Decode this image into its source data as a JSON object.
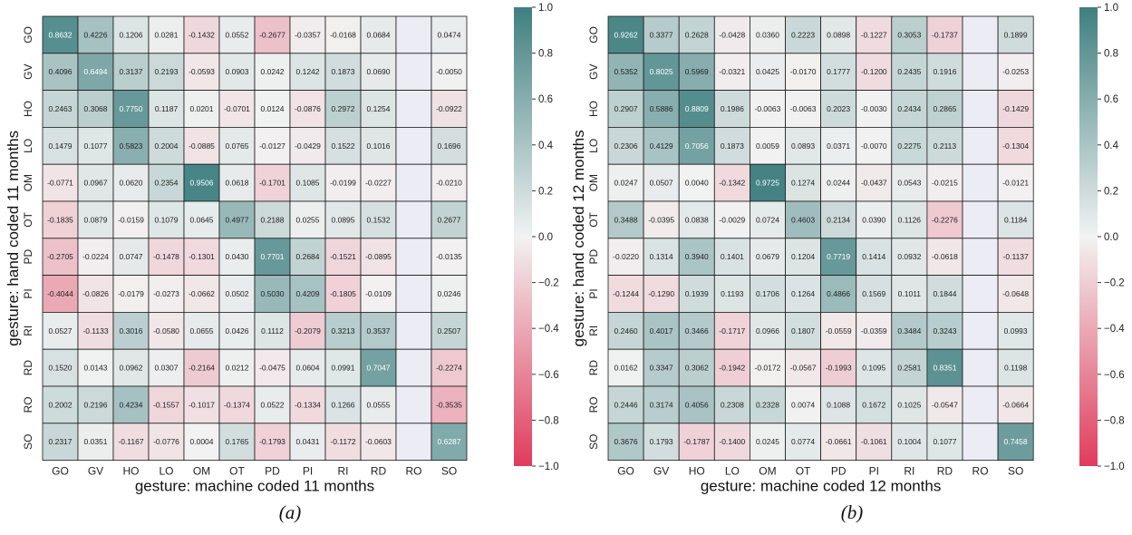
{
  "chart_data": [
    {
      "type": "heatmap",
      "xlabel": "gesture: machine coded 11 months",
      "ylabel": "gesture: hand coded 11 months",
      "caption": "(a)",
      "x_categories": [
        "GO",
        "GV",
        "HO",
        "LO",
        "OM",
        "OT",
        "PD",
        "PI",
        "RI",
        "RD",
        "RO",
        "SO"
      ],
      "y_categories": [
        "GO",
        "GV",
        "HO",
        "LO",
        "OM",
        "OT",
        "PD",
        "PI",
        "RI",
        "RD",
        "RO",
        "SO"
      ],
      "values": [
        [
          0.8632,
          0.4226,
          0.1206,
          0.0281,
          -0.1432,
          0.0552,
          -0.2677,
          -0.0357,
          -0.0168,
          0.0684,
          null,
          0.0474
        ],
        [
          0.4096,
          0.6494,
          0.3137,
          0.2193,
          -0.0593,
          0.0903,
          0.0242,
          0.1242,
          0.1873,
          0.069,
          null,
          -0.005
        ],
        [
          0.2463,
          0.3068,
          0.775,
          0.1187,
          0.0201,
          -0.0701,
          0.0124,
          -0.0876,
          0.2972,
          0.1254,
          null,
          -0.0922
        ],
        [
          0.1479,
          0.1077,
          0.5823,
          0.2004,
          -0.0885,
          0.0765,
          -0.0127,
          -0.0429,
          0.1522,
          0.1016,
          null,
          0.1696
        ],
        [
          -0.0771,
          0.0967,
          0.062,
          0.2354,
          0.9506,
          0.0618,
          -0.1701,
          0.1085,
          -0.0199,
          -0.0227,
          null,
          -0.021
        ],
        [
          -0.1835,
          0.0879,
          -0.0159,
          0.1079,
          0.0645,
          0.4977,
          0.2188,
          0.0255,
          0.0895,
          0.1532,
          null,
          0.2677
        ],
        [
          -0.2705,
          -0.0224,
          0.0747,
          -0.1478,
          -0.1301,
          0.043,
          0.7701,
          0.2684,
          -0.1521,
          -0.0895,
          null,
          -0.0135
        ],
        [
          -0.4044,
          -0.0826,
          -0.0179,
          -0.0273,
          -0.0662,
          0.0502,
          0.503,
          0.4209,
          -0.1805,
          -0.0109,
          null,
          0.0246
        ],
        [
          0.0527,
          -0.1133,
          0.3016,
          -0.058,
          0.0655,
          0.0426,
          0.1112,
          -0.2079,
          0.3213,
          0.3537,
          null,
          0.2507
        ],
        [
          0.152,
          0.0143,
          0.0962,
          0.0307,
          -0.2164,
          0.0212,
          -0.0475,
          0.0604,
          0.0991,
          0.7047,
          null,
          -0.2274
        ],
        [
          0.2002,
          0.2196,
          0.4234,
          -0.1557,
          -0.1017,
          -0.1374,
          0.0522,
          -0.1334,
          0.1266,
          0.0555,
          null,
          -0.3535
        ],
        [
          0.2317,
          0.0351,
          -0.1167,
          -0.0776,
          0.0004,
          0.1765,
          -0.1793,
          0.0431,
          -0.1172,
          -0.0603,
          null,
          0.6287
        ]
      ],
      "colorbar": {
        "range": [
          -1.0,
          1.0
        ],
        "ticks": [
          "1.0",
          "0.8",
          "0.6",
          "0.4",
          "0.2",
          "0.0",
          "−0.2",
          "−0.4",
          "−0.6",
          "−0.8",
          "−1.0"
        ],
        "tick_values": [
          1.0,
          0.8,
          0.6,
          0.4,
          0.2,
          0.0,
          -0.2,
          -0.4,
          -0.6,
          -0.8,
          -1.0
        ]
      },
      "missing_color": "#ececf5"
    },
    {
      "type": "heatmap",
      "xlabel": "gesture: machine coded 12 months",
      "ylabel": "gesture: hand coded 12 months",
      "caption": "(b)",
      "x_categories": [
        "GO",
        "GV",
        "HO",
        "LO",
        "OM",
        "OT",
        "PD",
        "PI",
        "RI",
        "RD",
        "RO",
        "SO"
      ],
      "y_categories": [
        "GO",
        "GV",
        "HO",
        "LO",
        "OM",
        "OT",
        "PD",
        "PI",
        "RI",
        "RD",
        "RO",
        "SO"
      ],
      "values": [
        [
          0.9262,
          0.3377,
          0.2628,
          -0.0428,
          0.036,
          0.2223,
          0.0898,
          -0.1227,
          0.3053,
          -0.1737,
          null,
          0.1899
        ],
        [
          0.5352,
          0.8025,
          0.5969,
          -0.0321,
          0.0425,
          -0.017,
          0.1777,
          -0.12,
          0.2435,
          0.1916,
          null,
          -0.0253
        ],
        [
          0.2907,
          0.5886,
          0.8809,
          0.1986,
          -0.0063,
          -0.0063,
          0.2023,
          -0.003,
          0.2434,
          0.2865,
          null,
          -0.1429
        ],
        [
          0.2306,
          0.4129,
          0.7056,
          0.1873,
          0.0059,
          0.0893,
          0.0371,
          -0.007,
          0.2275,
          0.2113,
          null,
          -0.1304
        ],
        [
          0.0247,
          0.0507,
          0.004,
          -0.1342,
          0.9725,
          0.1274,
          0.0244,
          -0.0437,
          0.0543,
          -0.0215,
          null,
          -0.0121
        ],
        [
          0.3488,
          -0.0395,
          0.0838,
          -0.0029,
          0.0724,
          0.4603,
          0.2134,
          0.039,
          0.1126,
          -0.2276,
          null,
          0.1184
        ],
        [
          -0.022,
          0.1314,
          0.394,
          0.1401,
          0.0679,
          0.1204,
          0.7719,
          0.1414,
          0.0932,
          -0.0618,
          null,
          -0.1137
        ],
        [
          -0.1244,
          -0.129,
          0.1939,
          0.1193,
          0.1706,
          0.1264,
          0.4866,
          0.1569,
          0.1011,
          0.1844,
          null,
          -0.0648
        ],
        [
          0.246,
          0.4017,
          0.3466,
          -0.1717,
          0.0966,
          0.1807,
          -0.0559,
          -0.0359,
          0.3484,
          0.3243,
          null,
          0.0993
        ],
        [
          0.0162,
          0.3347,
          0.3062,
          -0.1942,
          -0.0172,
          -0.0567,
          -0.1993,
          0.1095,
          0.2581,
          0.8351,
          null,
          0.1198
        ],
        [
          0.2446,
          0.3174,
          0.4056,
          0.2308,
          0.2328,
          0.0074,
          0.1088,
          0.1672,
          0.1025,
          -0.0547,
          null,
          -0.0664
        ],
        [
          0.3676,
          0.1793,
          -0.1787,
          -0.14,
          0.0245,
          0.0774,
          -0.0661,
          -0.1061,
          0.1004,
          0.1077,
          null,
          0.7458
        ]
      ],
      "colorbar": {
        "range": [
          -1.0,
          1.0
        ],
        "ticks": [
          "1.0",
          "0.8",
          "0.6",
          "0.4",
          "0.2",
          "0.0",
          "−0.2",
          "−0.4",
          "−0.6",
          "−0.8",
          "−1.0"
        ],
        "tick_values": [
          1.0,
          0.8,
          0.6,
          0.4,
          0.2,
          0.0,
          -0.2,
          -0.4,
          -0.6,
          -0.8,
          -1.0
        ]
      },
      "missing_color": "#ececf5"
    }
  ],
  "colors": {
    "positive": "#3f7f80",
    "neutral": "#f2f2f2",
    "negative": "#e03c5c"
  }
}
